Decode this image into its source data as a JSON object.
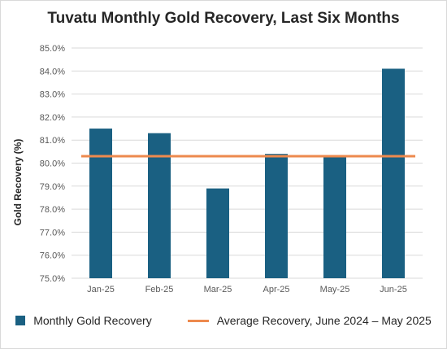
{
  "chart_data": {
    "type": "bar",
    "title": "Tuvatu Monthly Gold Recovery, Last Six Months",
    "ylabel": "Gold Recovery (%)",
    "xlabel": "",
    "categories": [
      "Jan-25",
      "Feb-25",
      "Mar-25",
      "Apr-25",
      "May-25",
      "Jun-25"
    ],
    "series": [
      {
        "name": "Monthly Gold Recovery",
        "type": "bar",
        "color": "#1a6082",
        "values": [
          81.5,
          81.3,
          78.9,
          80.4,
          80.3,
          84.1
        ]
      },
      {
        "name": "Average Recovery, June 2024 – May 2025",
        "type": "hline",
        "color": "#ed8a4e",
        "value": 80.3
      }
    ],
    "ylim": [
      75,
      85
    ],
    "yticks": [
      "75.0%",
      "76.0%",
      "77.0%",
      "78.0%",
      "79.0%",
      "80.0%",
      "81.0%",
      "82.0%",
      "83.0%",
      "84.0%",
      "85.0%"
    ],
    "grid": "horizontal",
    "legend": "bottom"
  }
}
